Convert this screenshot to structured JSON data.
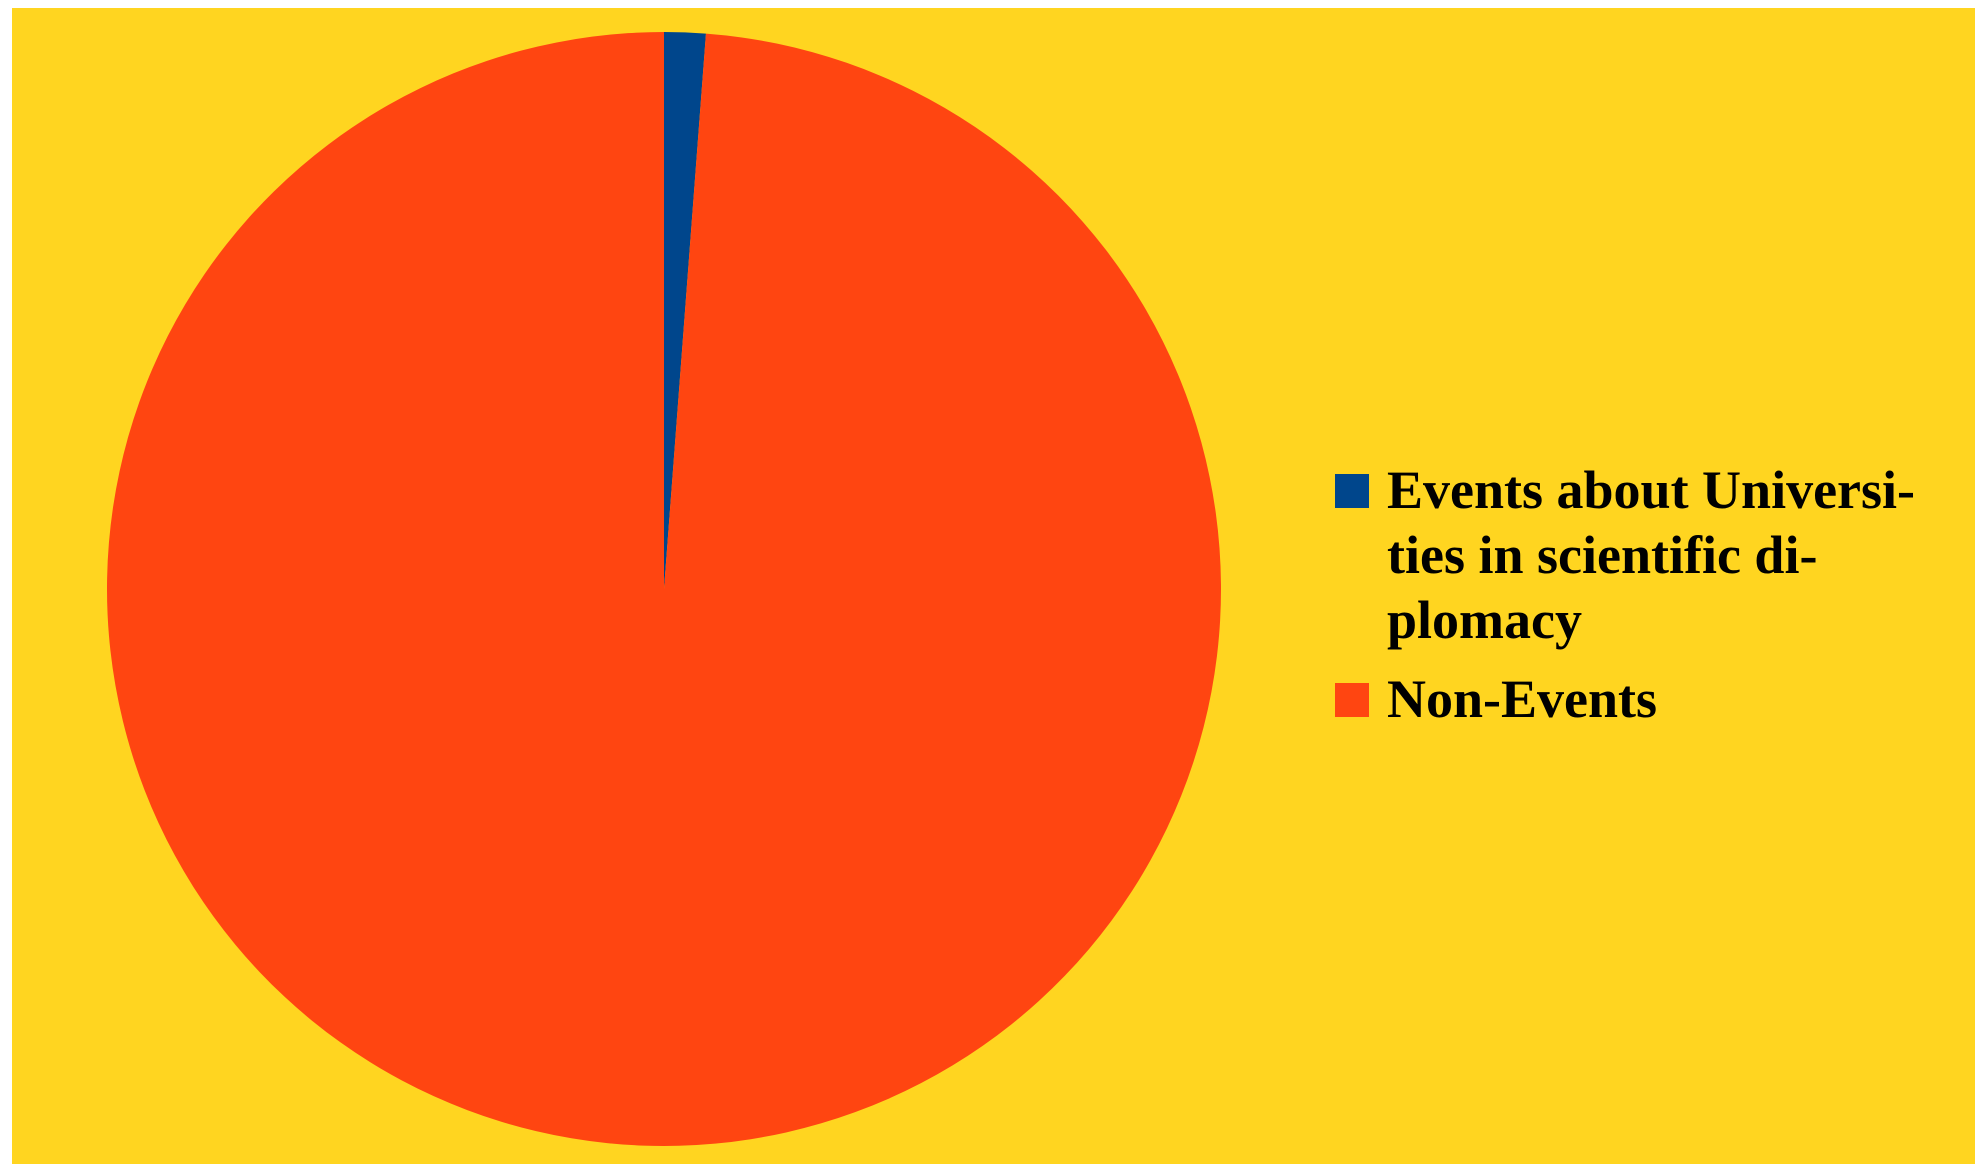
{
  "chart_data": {
    "type": "pie",
    "start_angle_deg": 0,
    "direction": "clockwise",
    "slices": [
      {
        "label": "Events about Universi-ties in scientific di-plomacy",
        "value": 1.2,
        "color": "#00468C"
      },
      {
        "label": "Non-Events",
        "value": 98.8,
        "color": "#FF4511"
      }
    ],
    "legend_position": "right"
  },
  "colors": {
    "background": "#FFD520"
  }
}
